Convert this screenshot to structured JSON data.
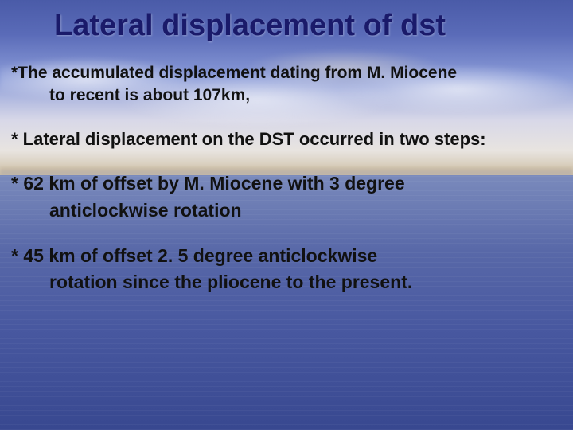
{
  "slide": {
    "title": "Lateral displacement of dst",
    "bullets": [
      {
        "line1": "*The accumulated displacement dating from M. Miocene",
        "line2": "to recent is about 107km,"
      },
      {
        "line1": "* Lateral displacement on the DST occurred in two steps:"
      },
      {
        "line1": "* 62 km of offset by M. Miocene with 3 degree",
        "line2": "anticlockwise rotation"
      },
      {
        "line1": "* 45 km of offset 2. 5 degree anticlockwise",
        "line2": "rotation since the pliocene to the present."
      }
    ]
  },
  "style": {
    "title_color": "#1a1a6a",
    "text_color": "#111111",
    "title_fontsize": 38,
    "bullet_fontsizes": [
      21,
      22,
      23,
      23
    ],
    "background_gradient_top": "#4a5ba8",
    "background_gradient_bottom": "#384890",
    "cloud_color": "#ffffff",
    "horizon_color": "#c8b898",
    "font_family": "Verdana"
  }
}
